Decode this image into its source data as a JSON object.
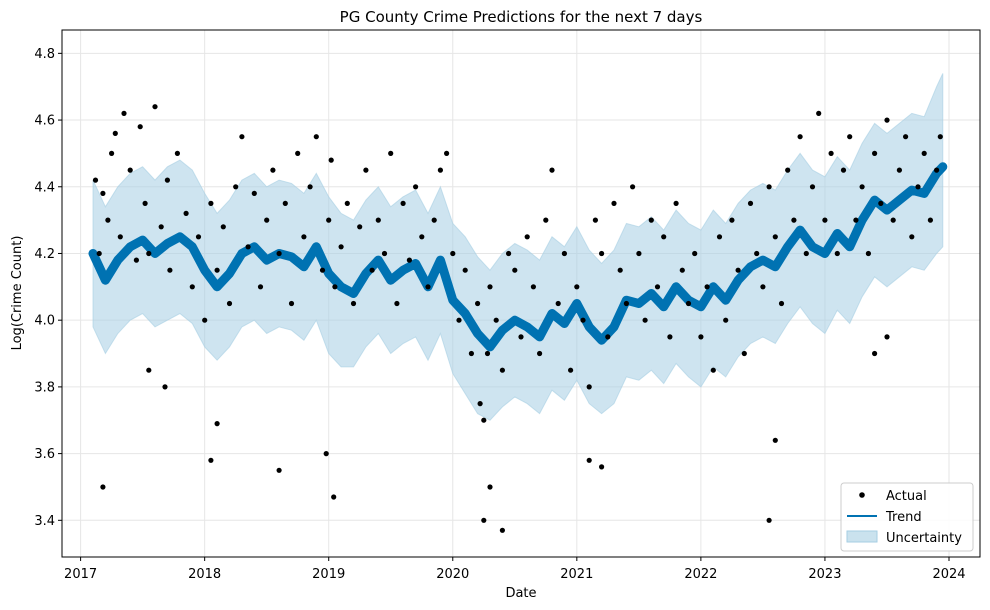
{
  "chart_data": {
    "type": "scatter",
    "title": "PG County Crime Predictions for the next 7 days",
    "xlabel": "Date",
    "ylabel": "Log(Crime Count)",
    "xlim": [
      2016.85,
      2024.25
    ],
    "ylim": [
      3.29,
      4.87
    ],
    "x_ticks": [
      "2017",
      "2018",
      "2019",
      "2020",
      "2021",
      "2022",
      "2023",
      "2024"
    ],
    "y_ticks": [
      "3.4",
      "3.6",
      "3.8",
      "4.0",
      "4.2",
      "4.4",
      "4.6",
      "4.8"
    ],
    "grid": true,
    "legend_position": "bottom-right",
    "legend": [
      "Actual",
      "Trend",
      "Uncertainty"
    ],
    "colors": {
      "actual": "#000000",
      "trend": "#0072b2",
      "uncertainty": "#a6cee3"
    },
    "series": [
      {
        "name": "Trend",
        "type": "line",
        "x": [
          2017.1,
          2017.2,
          2017.3,
          2017.4,
          2017.5,
          2017.6,
          2017.7,
          2017.8,
          2017.9,
          2018.0,
          2018.1,
          2018.2,
          2018.3,
          2018.4,
          2018.5,
          2018.6,
          2018.7,
          2018.8,
          2018.9,
          2019.0,
          2019.1,
          2019.2,
          2019.3,
          2019.4,
          2019.5,
          2019.6,
          2019.7,
          2019.8,
          2019.9,
          2020.0,
          2020.1,
          2020.2,
          2020.3,
          2020.4,
          2020.5,
          2020.6,
          2020.7,
          2020.8,
          2020.9,
          2021.0,
          2021.1,
          2021.2,
          2021.3,
          2021.4,
          2021.5,
          2021.6,
          2021.7,
          2021.8,
          2021.9,
          2022.0,
          2022.1,
          2022.2,
          2022.3,
          2022.4,
          2022.5,
          2022.6,
          2022.7,
          2022.8,
          2022.9,
          2023.0,
          2023.1,
          2023.2,
          2023.3,
          2023.4,
          2023.5,
          2023.6,
          2023.7,
          2023.8,
          2023.9,
          2023.95
        ],
        "y": [
          4.2,
          4.12,
          4.18,
          4.22,
          4.24,
          4.2,
          4.23,
          4.25,
          4.22,
          4.15,
          4.1,
          4.14,
          4.2,
          4.22,
          4.18,
          4.2,
          4.19,
          4.16,
          4.22,
          4.14,
          4.1,
          4.08,
          4.14,
          4.18,
          4.12,
          4.15,
          4.17,
          4.1,
          4.18,
          4.06,
          4.02,
          3.96,
          3.92,
          3.97,
          4.0,
          3.98,
          3.95,
          4.02,
          3.99,
          4.05,
          3.98,
          3.94,
          3.98,
          4.06,
          4.05,
          4.08,
          4.04,
          4.1,
          4.06,
          4.04,
          4.1,
          4.06,
          4.12,
          4.16,
          4.18,
          4.16,
          4.22,
          4.27,
          4.22,
          4.2,
          4.26,
          4.22,
          4.3,
          4.36,
          4.33,
          4.36,
          4.39,
          4.38,
          4.44,
          4.46
        ]
      },
      {
        "name": "Uncertainty",
        "type": "band",
        "x": [
          2017.1,
          2017.2,
          2017.3,
          2017.4,
          2017.5,
          2017.6,
          2017.7,
          2017.8,
          2017.9,
          2018.0,
          2018.1,
          2018.2,
          2018.3,
          2018.4,
          2018.5,
          2018.6,
          2018.7,
          2018.8,
          2018.9,
          2019.0,
          2019.1,
          2019.2,
          2019.3,
          2019.4,
          2019.5,
          2019.6,
          2019.7,
          2019.8,
          2019.9,
          2020.0,
          2020.1,
          2020.2,
          2020.3,
          2020.4,
          2020.5,
          2020.6,
          2020.7,
          2020.8,
          2020.9,
          2021.0,
          2021.1,
          2021.2,
          2021.3,
          2021.4,
          2021.5,
          2021.6,
          2021.7,
          2021.8,
          2021.9,
          2022.0,
          2022.1,
          2022.2,
          2022.3,
          2022.4,
          2022.5,
          2022.6,
          2022.7,
          2022.8,
          2022.9,
          2023.0,
          2023.1,
          2023.2,
          2023.3,
          2023.4,
          2023.5,
          2023.6,
          2023.7,
          2023.8,
          2023.9,
          2023.95
        ],
        "lower": [
          3.98,
          3.9,
          3.96,
          4.0,
          4.02,
          3.98,
          4.0,
          4.02,
          3.99,
          3.92,
          3.88,
          3.92,
          3.98,
          4.0,
          3.96,
          3.98,
          3.97,
          3.94,
          4.0,
          3.9,
          3.86,
          3.86,
          3.92,
          3.96,
          3.9,
          3.93,
          3.95,
          3.88,
          3.96,
          3.84,
          3.78,
          3.72,
          3.7,
          3.74,
          3.77,
          3.75,
          3.72,
          3.79,
          3.76,
          3.82,
          3.75,
          3.72,
          3.75,
          3.83,
          3.82,
          3.85,
          3.81,
          3.87,
          3.83,
          3.8,
          3.86,
          3.83,
          3.89,
          3.93,
          3.95,
          3.93,
          3.99,
          4.04,
          3.99,
          3.96,
          4.03,
          3.99,
          4.07,
          4.13,
          4.1,
          4.13,
          4.16,
          4.15,
          4.2,
          4.22
        ],
        "upper": [
          4.42,
          4.34,
          4.4,
          4.44,
          4.46,
          4.42,
          4.46,
          4.48,
          4.45,
          4.38,
          4.32,
          4.36,
          4.42,
          4.44,
          4.4,
          4.42,
          4.41,
          4.38,
          4.44,
          4.37,
          4.32,
          4.3,
          4.36,
          4.4,
          4.34,
          4.37,
          4.39,
          4.32,
          4.4,
          4.29,
          4.25,
          4.19,
          4.15,
          4.2,
          4.23,
          4.21,
          4.18,
          4.25,
          4.22,
          4.28,
          4.21,
          4.17,
          4.21,
          4.29,
          4.28,
          4.31,
          4.27,
          4.33,
          4.29,
          4.27,
          4.33,
          4.29,
          4.35,
          4.39,
          4.41,
          4.39,
          4.45,
          4.5,
          4.45,
          4.43,
          4.49,
          4.45,
          4.53,
          4.59,
          4.56,
          4.59,
          4.62,
          4.61,
          4.7,
          4.74
        ]
      },
      {
        "name": "Actual",
        "type": "scatter",
        "x": [
          2017.12,
          2017.15,
          2017.18,
          2017.22,
          2017.25,
          2017.28,
          2017.32,
          2017.35,
          2017.4,
          2017.45,
          2017.48,
          2017.52,
          2017.55,
          2017.6,
          2017.65,
          2017.7,
          2017.72,
          2017.78,
          2017.85,
          2017.9,
          2017.95,
          2018.0,
          2018.05,
          2018.1,
          2018.15,
          2018.2,
          2018.25,
          2018.3,
          2018.35,
          2018.4,
          2018.45,
          2018.5,
          2018.55,
          2018.6,
          2018.65,
          2018.7,
          2018.75,
          2018.8,
          2018.85,
          2018.9,
          2018.95,
          2019.0,
          2019.02,
          2019.05,
          2019.1,
          2019.15,
          2019.2,
          2019.25,
          2019.3,
          2019.35,
          2019.4,
          2019.45,
          2019.5,
          2019.55,
          2019.6,
          2019.65,
          2019.7,
          2019.75,
          2019.8,
          2019.85,
          2019.9,
          2019.95,
          2020.0,
          2020.05,
          2020.1,
          2020.15,
          2020.2,
          2020.22,
          2020.25,
          2020.28,
          2020.3,
          2020.35,
          2020.4,
          2020.45,
          2020.5,
          2020.55,
          2020.6,
          2020.65,
          2020.7,
          2020.75,
          2020.8,
          2020.85,
          2020.9,
          2020.95,
          2021.0,
          2021.05,
          2021.1,
          2021.15,
          2021.2,
          2021.25,
          2021.3,
          2021.35,
          2021.4,
          2021.45,
          2021.5,
          2021.55,
          2021.6,
          2021.65,
          2021.7,
          2021.75,
          2021.8,
          2021.85,
          2021.9,
          2021.95,
          2022.0,
          2022.05,
          2022.1,
          2022.15,
          2022.2,
          2022.25,
          2022.3,
          2022.35,
          2022.4,
          2022.45,
          2022.5,
          2022.55,
          2022.6,
          2022.65,
          2022.7,
          2022.75,
          2022.8,
          2022.85,
          2022.9,
          2022.95,
          2023.0,
          2023.05,
          2023.1,
          2023.15,
          2023.2,
          2023.25,
          2023.3,
          2023.35,
          2023.4,
          2023.45,
          2023.5,
          2023.55,
          2023.6,
          2023.65,
          2023.7,
          2023.75,
          2023.8,
          2023.85,
          2023.9,
          2023.93,
          2017.18,
          2017.55,
          2017.68,
          2018.05,
          2018.1,
          2018.6,
          2018.98,
          2019.04,
          2020.25,
          2020.3,
          2020.4,
          2021.1,
          2021.2,
          2022.55,
          2022.6,
          2023.4,
          2023.5
        ],
        "y": [
          4.42,
          4.2,
          4.38,
          4.3,
          4.5,
          4.56,
          4.25,
          4.62,
          4.45,
          4.18,
          4.58,
          4.35,
          4.2,
          4.64,
          4.28,
          4.42,
          4.15,
          4.5,
          4.32,
          4.1,
          4.25,
          4.0,
          4.35,
          4.15,
          4.28,
          4.05,
          4.4,
          4.55,
          4.22,
          4.38,
          4.1,
          4.3,
          4.45,
          4.2,
          4.35,
          4.05,
          4.5,
          4.25,
          4.4,
          4.55,
          4.15,
          4.3,
          4.48,
          4.1,
          4.22,
          4.35,
          4.05,
          4.28,
          4.45,
          4.15,
          4.3,
          4.2,
          4.5,
          4.05,
          4.35,
          4.18,
          4.4,
          4.25,
          4.1,
          4.3,
          4.45,
          4.5,
          4.2,
          4.0,
          4.15,
          3.9,
          4.05,
          3.75,
          3.7,
          3.9,
          4.1,
          4.0,
          3.85,
          4.2,
          4.15,
          3.95,
          4.25,
          4.1,
          3.9,
          4.3,
          4.45,
          4.05,
          4.2,
          3.85,
          4.1,
          4.0,
          3.8,
          4.3,
          4.2,
          3.95,
          4.35,
          4.15,
          4.05,
          4.4,
          4.2,
          4.0,
          4.3,
          4.1,
          4.25,
          3.95,
          4.35,
          4.15,
          4.05,
          4.2,
          3.95,
          4.1,
          3.85,
          4.25,
          4.0,
          4.3,
          4.15,
          3.9,
          4.35,
          4.2,
          4.1,
          4.4,
          4.25,
          4.05,
          4.45,
          4.3,
          4.55,
          4.2,
          4.4,
          4.62,
          4.3,
          4.5,
          4.2,
          4.45,
          4.55,
          4.3,
          4.4,
          4.2,
          4.5,
          4.35,
          4.6,
          4.3,
          4.45,
          4.55,
          4.25,
          4.4,
          4.5,
          4.3,
          4.45,
          4.55,
          3.5,
          3.85,
          3.8,
          3.58,
          3.69,
          3.55,
          3.6,
          3.47,
          3.4,
          3.5,
          3.37,
          3.58,
          3.56,
          3.4,
          3.64,
          3.9,
          3.95
        ]
      }
    ]
  }
}
